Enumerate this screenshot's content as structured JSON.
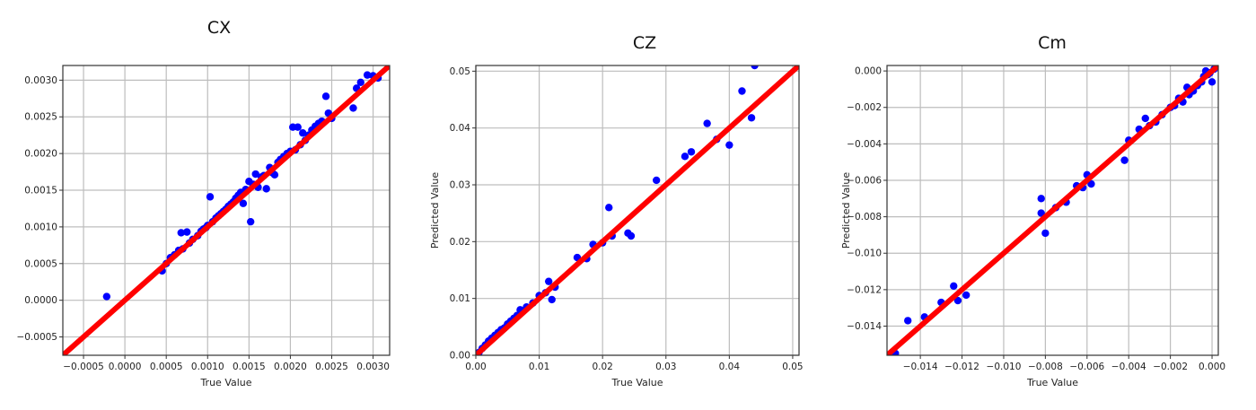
{
  "chart_data": [
    {
      "type": "scatter",
      "title": "CX",
      "xlabel": "True Value",
      "ylabel": "",
      "xlim": [
        -0.00075,
        0.0032
      ],
      "ylim": [
        -0.00075,
        0.0032
      ],
      "xticks": [
        "−0.0005",
        "0.0000",
        "0.0005",
        "0.0010",
        "0.0015",
        "0.0020",
        "0.0025",
        "0.0030"
      ],
      "yticks": [
        "−0.0005",
        "0.0000",
        "0.0005",
        "0.0010",
        "0.0015",
        "0.0020",
        "0.0025",
        "0.0030"
      ],
      "xtick_values": [
        -0.0005,
        0.0,
        0.0005,
        0.001,
        0.0015,
        0.002,
        0.0025,
        0.003
      ],
      "ytick_values": [
        -0.0005,
        0.0,
        0.0005,
        0.001,
        0.0015,
        0.002,
        0.0025,
        0.003
      ],
      "grid": true,
      "point_color": "#0000ff",
      "line_color": "#ff0000",
      "line": [
        [
          -0.00075,
          -0.00075
        ],
        [
          0.0032,
          0.0032
        ]
      ],
      "points": [
        [
          -0.00022,
          5e-05
        ],
        [
          0.00045,
          0.0004
        ],
        [
          0.0005,
          0.0005
        ],
        [
          0.00055,
          0.00058
        ],
        [
          0.0006,
          0.00062
        ],
        [
          0.00065,
          0.00068
        ],
        [
          0.00068,
          0.00092
        ],
        [
          0.0007,
          0.0007
        ],
        [
          0.00075,
          0.00093
        ],
        [
          0.00078,
          0.00078
        ],
        [
          0.00082,
          0.00083
        ],
        [
          0.00088,
          0.00088
        ],
        [
          0.00092,
          0.00094
        ],
        [
          0.00095,
          0.00097
        ],
        [
          0.00098,
          0.00099
        ],
        [
          0.001,
          0.00102
        ],
        [
          0.00103,
          0.00141
        ],
        [
          0.00106,
          0.00107
        ],
        [
          0.0011,
          0.00112
        ],
        [
          0.00113,
          0.00115
        ],
        [
          0.00116,
          0.00118
        ],
        [
          0.00119,
          0.00121
        ],
        [
          0.00122,
          0.00124
        ],
        [
          0.00125,
          0.00128
        ],
        [
          0.00128,
          0.00131
        ],
        [
          0.00131,
          0.00134
        ],
        [
          0.00134,
          0.00139
        ],
        [
          0.00137,
          0.00143
        ],
        [
          0.0014,
          0.00147
        ],
        [
          0.00143,
          0.00132
        ],
        [
          0.00146,
          0.00151
        ],
        [
          0.0015,
          0.00162
        ],
        [
          0.00152,
          0.00107
        ],
        [
          0.00155,
          0.00158
        ],
        [
          0.00158,
          0.00172
        ],
        [
          0.00161,
          0.00154
        ],
        [
          0.00165,
          0.00168
        ],
        [
          0.00168,
          0.0017
        ],
        [
          0.00171,
          0.00152
        ],
        [
          0.00175,
          0.00181
        ],
        [
          0.00178,
          0.00174
        ],
        [
          0.00181,
          0.00171
        ],
        [
          0.00185,
          0.00188
        ],
        [
          0.00188,
          0.00192
        ],
        [
          0.00192,
          0.00196
        ],
        [
          0.00196,
          0.002
        ],
        [
          0.002,
          0.00203
        ],
        [
          0.00203,
          0.00236
        ],
        [
          0.00206,
          0.00205
        ],
        [
          0.00209,
          0.00236
        ],
        [
          0.00212,
          0.00212
        ],
        [
          0.00215,
          0.00228
        ],
        [
          0.00218,
          0.00218
        ],
        [
          0.00222,
          0.00225
        ],
        [
          0.00226,
          0.00232
        ],
        [
          0.0023,
          0.00237
        ],
        [
          0.00234,
          0.00241
        ],
        [
          0.00238,
          0.00244
        ],
        [
          0.00243,
          0.00278
        ],
        [
          0.00246,
          0.00255
        ],
        [
          0.0025,
          0.00248
        ],
        [
          0.00276,
          0.00262
        ],
        [
          0.0028,
          0.00289
        ],
        [
          0.00285,
          0.00297
        ],
        [
          0.00293,
          0.00307
        ],
        [
          0.003,
          0.00306
        ],
        [
          0.00306,
          0.00303
        ]
      ]
    },
    {
      "type": "scatter",
      "title": "CZ",
      "xlabel": "True Value",
      "ylabel": "Predicted Value",
      "xlim": [
        0.0,
        0.051
      ],
      "ylim": [
        0.0,
        0.051
      ],
      "xticks": [
        "0.00",
        "0.01",
        "0.02",
        "0.03",
        "0.04",
        "0.05"
      ],
      "yticks": [
        "0.00",
        "0.01",
        "0.02",
        "0.03",
        "0.04",
        "0.05"
      ],
      "xtick_values": [
        0.0,
        0.01,
        0.02,
        0.03,
        0.04,
        0.05
      ],
      "ytick_values": [
        0.0,
        0.01,
        0.02,
        0.03,
        0.04,
        0.05
      ],
      "grid": true,
      "point_color": "#0000ff",
      "line_color": "#ff0000",
      "line": [
        [
          0.0,
          0.0
        ],
        [
          0.051,
          0.051
        ]
      ],
      "points": [
        [
          0.0005,
          0.0005
        ],
        [
          0.001,
          0.0012
        ],
        [
          0.0015,
          0.0018
        ],
        [
          0.002,
          0.0025
        ],
        [
          0.0025,
          0.003
        ],
        [
          0.003,
          0.0035
        ],
        [
          0.0035,
          0.004
        ],
        [
          0.004,
          0.0045
        ],
        [
          0.0045,
          0.0048
        ],
        [
          0.005,
          0.0055
        ],
        [
          0.0055,
          0.006
        ],
        [
          0.006,
          0.0065
        ],
        [
          0.0065,
          0.007
        ],
        [
          0.007,
          0.008
        ],
        [
          0.008,
          0.0085
        ],
        [
          0.009,
          0.0092
        ],
        [
          0.01,
          0.0105
        ],
        [
          0.011,
          0.011
        ],
        [
          0.0115,
          0.013
        ],
        [
          0.012,
          0.0098
        ],
        [
          0.0125,
          0.012
        ],
        [
          0.016,
          0.0172
        ],
        [
          0.0175,
          0.017
        ],
        [
          0.0185,
          0.0195
        ],
        [
          0.02,
          0.0198
        ],
        [
          0.021,
          0.026
        ],
        [
          0.0215,
          0.021
        ],
        [
          0.024,
          0.0215
        ],
        [
          0.0245,
          0.021
        ],
        [
          0.0285,
          0.0308
        ],
        [
          0.033,
          0.035
        ],
        [
          0.034,
          0.0358
        ],
        [
          0.0365,
          0.0408
        ],
        [
          0.038,
          0.038
        ],
        [
          0.04,
          0.037
        ],
        [
          0.042,
          0.0465
        ],
        [
          0.0435,
          0.0418
        ],
        [
          0.044,
          0.051
        ]
      ]
    },
    {
      "type": "scatter",
      "title": "Cm",
      "xlabel": "True Value",
      "ylabel": "Predicted Value",
      "xlim": [
        -0.0156,
        0.0003
      ],
      "ylim": [
        -0.0156,
        0.0003
      ],
      "xticks": [
        "−0.014",
        "−0.012",
        "−0.010",
        "−0.008",
        "−0.006",
        "−0.004",
        "−0.002",
        "0.000"
      ],
      "yticks": [
        "−0.014",
        "−0.012",
        "−0.010",
        "−0.008",
        "−0.006",
        "−0.004",
        "−0.002",
        "0.000"
      ],
      "xtick_values": [
        -0.014,
        -0.012,
        -0.01,
        -0.008,
        -0.006,
        -0.004,
        -0.002,
        0.0
      ],
      "ytick_values": [
        -0.014,
        -0.012,
        -0.01,
        -0.008,
        -0.006,
        -0.004,
        -0.002,
        0.0
      ],
      "grid": true,
      "point_color": "#0000ff",
      "line_color": "#ff0000",
      "line": [
        [
          -0.0156,
          -0.0156
        ],
        [
          0.0003,
          0.0003
        ]
      ],
      "points": [
        [
          -0.0152,
          -0.0155
        ],
        [
          -0.0146,
          -0.0137
        ],
        [
          -0.0138,
          -0.0135
        ],
        [
          -0.013,
          -0.0127
        ],
        [
          -0.0124,
          -0.0118
        ],
        [
          -0.0122,
          -0.0126
        ],
        [
          -0.0118,
          -0.0123
        ],
        [
          -0.0082,
          -0.007
        ],
        [
          -0.0082,
          -0.0078
        ],
        [
          -0.008,
          -0.0089
        ],
        [
          -0.0075,
          -0.0075
        ],
        [
          -0.007,
          -0.0072
        ],
        [
          -0.0065,
          -0.0063
        ],
        [
          -0.0062,
          -0.0064
        ],
        [
          -0.006,
          -0.0057
        ],
        [
          -0.0058,
          -0.0062
        ],
        [
          -0.0042,
          -0.0049
        ],
        [
          -0.004,
          -0.0038
        ],
        [
          -0.0035,
          -0.0032
        ],
        [
          -0.0032,
          -0.0026
        ],
        [
          -0.003,
          -0.003
        ],
        [
          -0.0027,
          -0.0028
        ],
        [
          -0.0024,
          -0.0024
        ],
        [
          -0.002,
          -0.002
        ],
        [
          -0.0018,
          -0.0019
        ],
        [
          -0.0016,
          -0.0015
        ],
        [
          -0.0014,
          -0.0017
        ],
        [
          -0.0012,
          -0.0009
        ],
        [
          -0.0011,
          -0.0013
        ],
        [
          -0.0009,
          -0.0011
        ],
        [
          -0.0007,
          -0.0008
        ],
        [
          -0.0005,
          -0.0006
        ],
        [
          -0.0004,
          -0.0003
        ],
        [
          -0.0003,
          0.0
        ],
        [
          -0.0002,
          -0.0002
        ],
        [
          -0.0001,
          -0.0001
        ],
        [
          0.0,
          -0.0006
        ],
        [
          0.0001,
          0.0001
        ]
      ]
    }
  ]
}
